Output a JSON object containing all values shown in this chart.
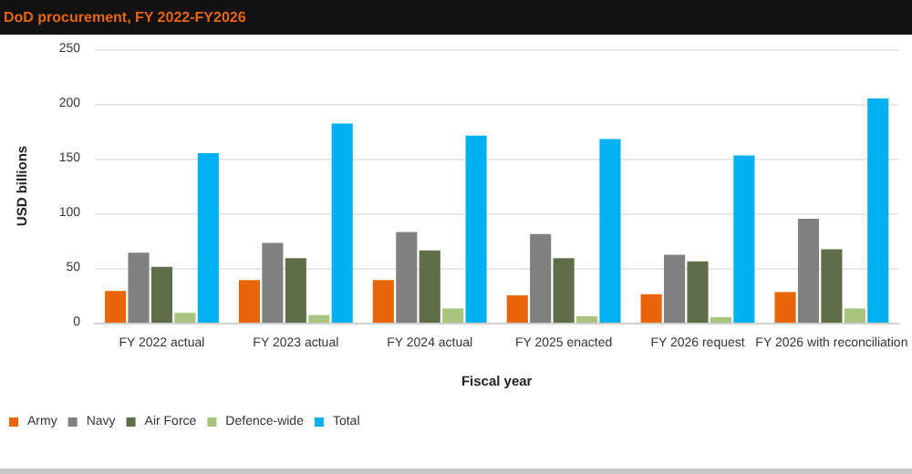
{
  "chart_data": {
    "type": "bar",
    "title": "DoD procurement, FY 2022-FY2026",
    "xlabel": "Fiscal year",
    "ylabel": "USD billions",
    "categories": [
      "FY 2022 actual",
      "FY 2023 actual",
      "FY 2024 actual",
      "FY 2025 enacted",
      "FY 2026 request",
      "FY 2026 with reconciliation"
    ],
    "series": [
      {
        "name": "Army",
        "color": "#e8650a",
        "values": [
          29,
          39,
          39,
          25,
          26,
          28
        ]
      },
      {
        "name": "Navy",
        "color": "#808080",
        "values": [
          64,
          73,
          83,
          81,
          62,
          95
        ]
      },
      {
        "name": "Air Force",
        "color": "#5f6e48",
        "values": [
          51,
          59,
          66,
          59,
          56,
          67
        ]
      },
      {
        "name": "Defence-wide",
        "color": "#a9c47f",
        "values": [
          9,
          7,
          13,
          6,
          5,
          13
        ]
      },
      {
        "name": "Total",
        "color": "#00b0f0",
        "values": [
          155,
          182,
          171,
          168,
          153,
          205
        ]
      }
    ],
    "ylim": [
      0,
      250
    ],
    "yticks": [
      0,
      50,
      100,
      150,
      200,
      250
    ],
    "grid": "y",
    "legend": "bottom left"
  }
}
